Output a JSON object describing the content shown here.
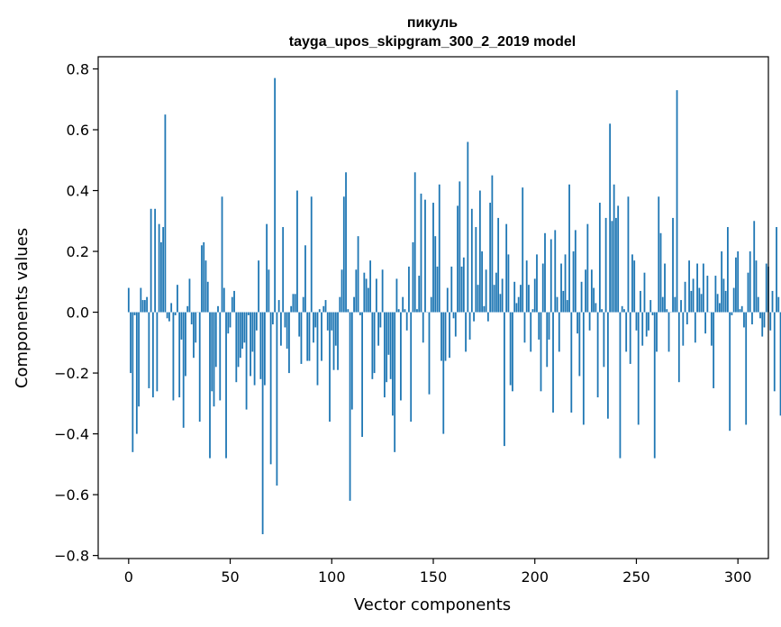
{
  "chart_data": {
    "type": "bar",
    "title_line1": "пикуль",
    "title_line2": "tayga_upos_skipgram_300_2_2019 model",
    "xlabel": "Vector components",
    "ylabel": "Components values",
    "xlim": [
      -15,
      315
    ],
    "ylim": [
      -0.81,
      0.84
    ],
    "xticks": [
      0,
      50,
      100,
      150,
      200,
      250,
      300
    ],
    "xtick_labels": [
      "0",
      "50",
      "100",
      "150",
      "200",
      "250",
      "300"
    ],
    "yticks": [
      0.8,
      0.6,
      0.4,
      0.2,
      0.0,
      -0.2,
      -0.4,
      -0.6,
      -0.8
    ],
    "ytick_labels": [
      "0.8",
      "0.6",
      "0.4",
      "0.2",
      "0.0",
      "−0.2",
      "−0.4",
      "−0.6",
      "−0.8"
    ],
    "bar_color": "#1f77b4",
    "values": [
      0.08,
      -0.2,
      -0.46,
      -0.01,
      -0.4,
      -0.31,
      0.08,
      0.04,
      0.04,
      0.05,
      -0.25,
      0.34,
      -0.28,
      0.34,
      -0.26,
      0.29,
      0.23,
      0.28,
      0.65,
      -0.02,
      -0.03,
      0.03,
      -0.29,
      -0.01,
      0.09,
      -0.28,
      -0.09,
      -0.38,
      -0.21,
      0.02,
      0.11,
      -0.04,
      -0.15,
      -0.1,
      0.0,
      -0.36,
      0.22,
      0.23,
      0.17,
      0.1,
      -0.48,
      -0.26,
      -0.31,
      -0.18,
      0.02,
      -0.29,
      0.38,
      0.08,
      -0.48,
      -0.07,
      -0.05,
      0.05,
      0.07,
      -0.23,
      -0.18,
      -0.15,
      -0.12,
      -0.1,
      -0.32,
      -0.01,
      -0.21,
      -0.13,
      -0.24,
      -0.06,
      0.17,
      -0.22,
      -0.73,
      -0.24,
      0.29,
      0.14,
      -0.5,
      -0.04,
      0.77,
      -0.57,
      0.04,
      -0.11,
      0.28,
      -0.05,
      -0.12,
      -0.2,
      0.02,
      0.06,
      0.06,
      0.4,
      -0.08,
      -0.17,
      0.05,
      0.22,
      -0.16,
      -0.16,
      0.38,
      -0.1,
      -0.05,
      -0.24,
      0.01,
      -0.16,
      0.02,
      0.04,
      -0.06,
      -0.36,
      -0.06,
      -0.19,
      -0.11,
      -0.19,
      0.05,
      0.14,
      0.38,
      0.46,
      0.01,
      -0.62,
      -0.32,
      0.05,
      0.14,
      0.25,
      -0.01,
      -0.41,
      0.13,
      0.11,
      0.08,
      0.17,
      -0.22,
      -0.2,
      0.11,
      -0.11,
      -0.05,
      0.14,
      -0.28,
      -0.23,
      -0.14,
      -0.22,
      -0.34,
      -0.46,
      0.11,
      0.01,
      -0.29,
      0.05,
      0.01,
      -0.06,
      0.15,
      -0.36,
      0.23,
      0.46,
      0.01,
      0.12,
      0.39,
      -0.1,
      0.37,
      0.0,
      -0.27,
      0.05,
      0.36,
      0.25,
      0.15,
      0.42,
      -0.16,
      -0.4,
      -0.16,
      0.08,
      -0.15,
      0.15,
      -0.02,
      -0.08,
      0.35,
      0.43,
      0.15,
      0.18,
      -0.13,
      0.56,
      -0.09,
      0.34,
      -0.03,
      0.28,
      0.09,
      0.4,
      0.2,
      0.02,
      0.14,
      -0.03,
      0.36,
      0.45,
      0.09,
      0.13,
      0.31,
      0.06,
      0.11,
      -0.44,
      0.29,
      0.19,
      -0.24,
      -0.26,
      0.1,
      0.03,
      0.05,
      0.09,
      0.41,
      -0.1,
      0.17,
      0.09,
      -0.13,
      0.01,
      0.11,
      0.19,
      -0.09,
      -0.26,
      0.16,
      0.26,
      -0.18,
      -0.09,
      0.24,
      -0.33,
      0.27,
      0.05,
      -0.13,
      0.16,
      0.07,
      0.19,
      0.04,
      0.42,
      -0.33,
      0.2,
      0.27,
      -0.07,
      -0.21,
      0.1,
      -0.37,
      0.14,
      0.29,
      -0.06,
      0.14,
      0.08,
      0.03,
      -0.28,
      0.36,
      0.01,
      -0.18,
      0.31,
      -0.35,
      0.62,
      0.3,
      0.42,
      0.31,
      0.35,
      -0.48,
      0.02,
      0.01,
      -0.13,
      0.38,
      -0.17,
      0.19,
      0.17,
      -0.06,
      -0.37,
      0.07,
      -0.11,
      0.13,
      -0.08,
      -0.06,
      0.04,
      -0.01,
      -0.48,
      -0.13,
      0.38,
      0.26,
      0.05,
      0.16,
      0.01,
      -0.13,
      0.0,
      0.31,
      0.05,
      0.73,
      -0.23,
      0.04,
      -0.11,
      0.1,
      -0.04,
      0.17,
      0.07,
      0.11,
      -0.1,
      0.16,
      0.08,
      0.06,
      0.16,
      -0.07,
      0.12,
      0.0,
      -0.11,
      -0.25,
      0.12,
      0.06,
      0.03,
      0.2,
      0.11,
      0.07,
      0.28,
      -0.39,
      -0.01,
      0.08,
      0.18,
      0.2,
      0.01,
      0.02,
      -0.05,
      -0.37,
      0.13,
      0.2,
      -0.04,
      0.3,
      0.17,
      0.05,
      -0.02,
      -0.08,
      -0.05,
      0.16,
      0.15,
      -0.06,
      0.07,
      -0.26,
      0.28,
      0.05,
      -0.34
    ]
  }
}
